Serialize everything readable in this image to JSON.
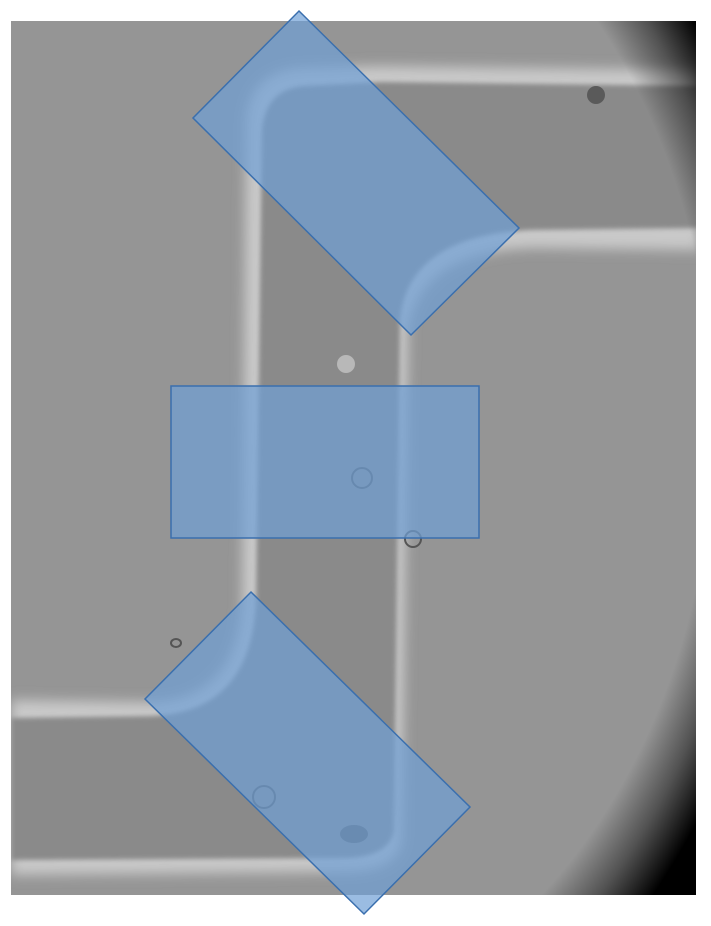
{
  "image": {
    "subject": "microscope-micrograph",
    "colors": {
      "page_background": "#ffffff",
      "field_background": "#959595",
      "channel_fill": "#8a8a8a",
      "channel_edge": "#c9c9c9",
      "vignette": "#000000",
      "highlight_fill": "#6f9fd6",
      "highlight_stroke": "#3a6fae"
    },
    "highlight_opacity": 0.7,
    "highlight_regions": [
      {
        "name": "upper-corner-region",
        "shape": "rotated-rectangle"
      },
      {
        "name": "middle-channel-region",
        "shape": "rectangle"
      },
      {
        "name": "lower-corner-region",
        "shape": "rotated-rectangle"
      }
    ]
  }
}
